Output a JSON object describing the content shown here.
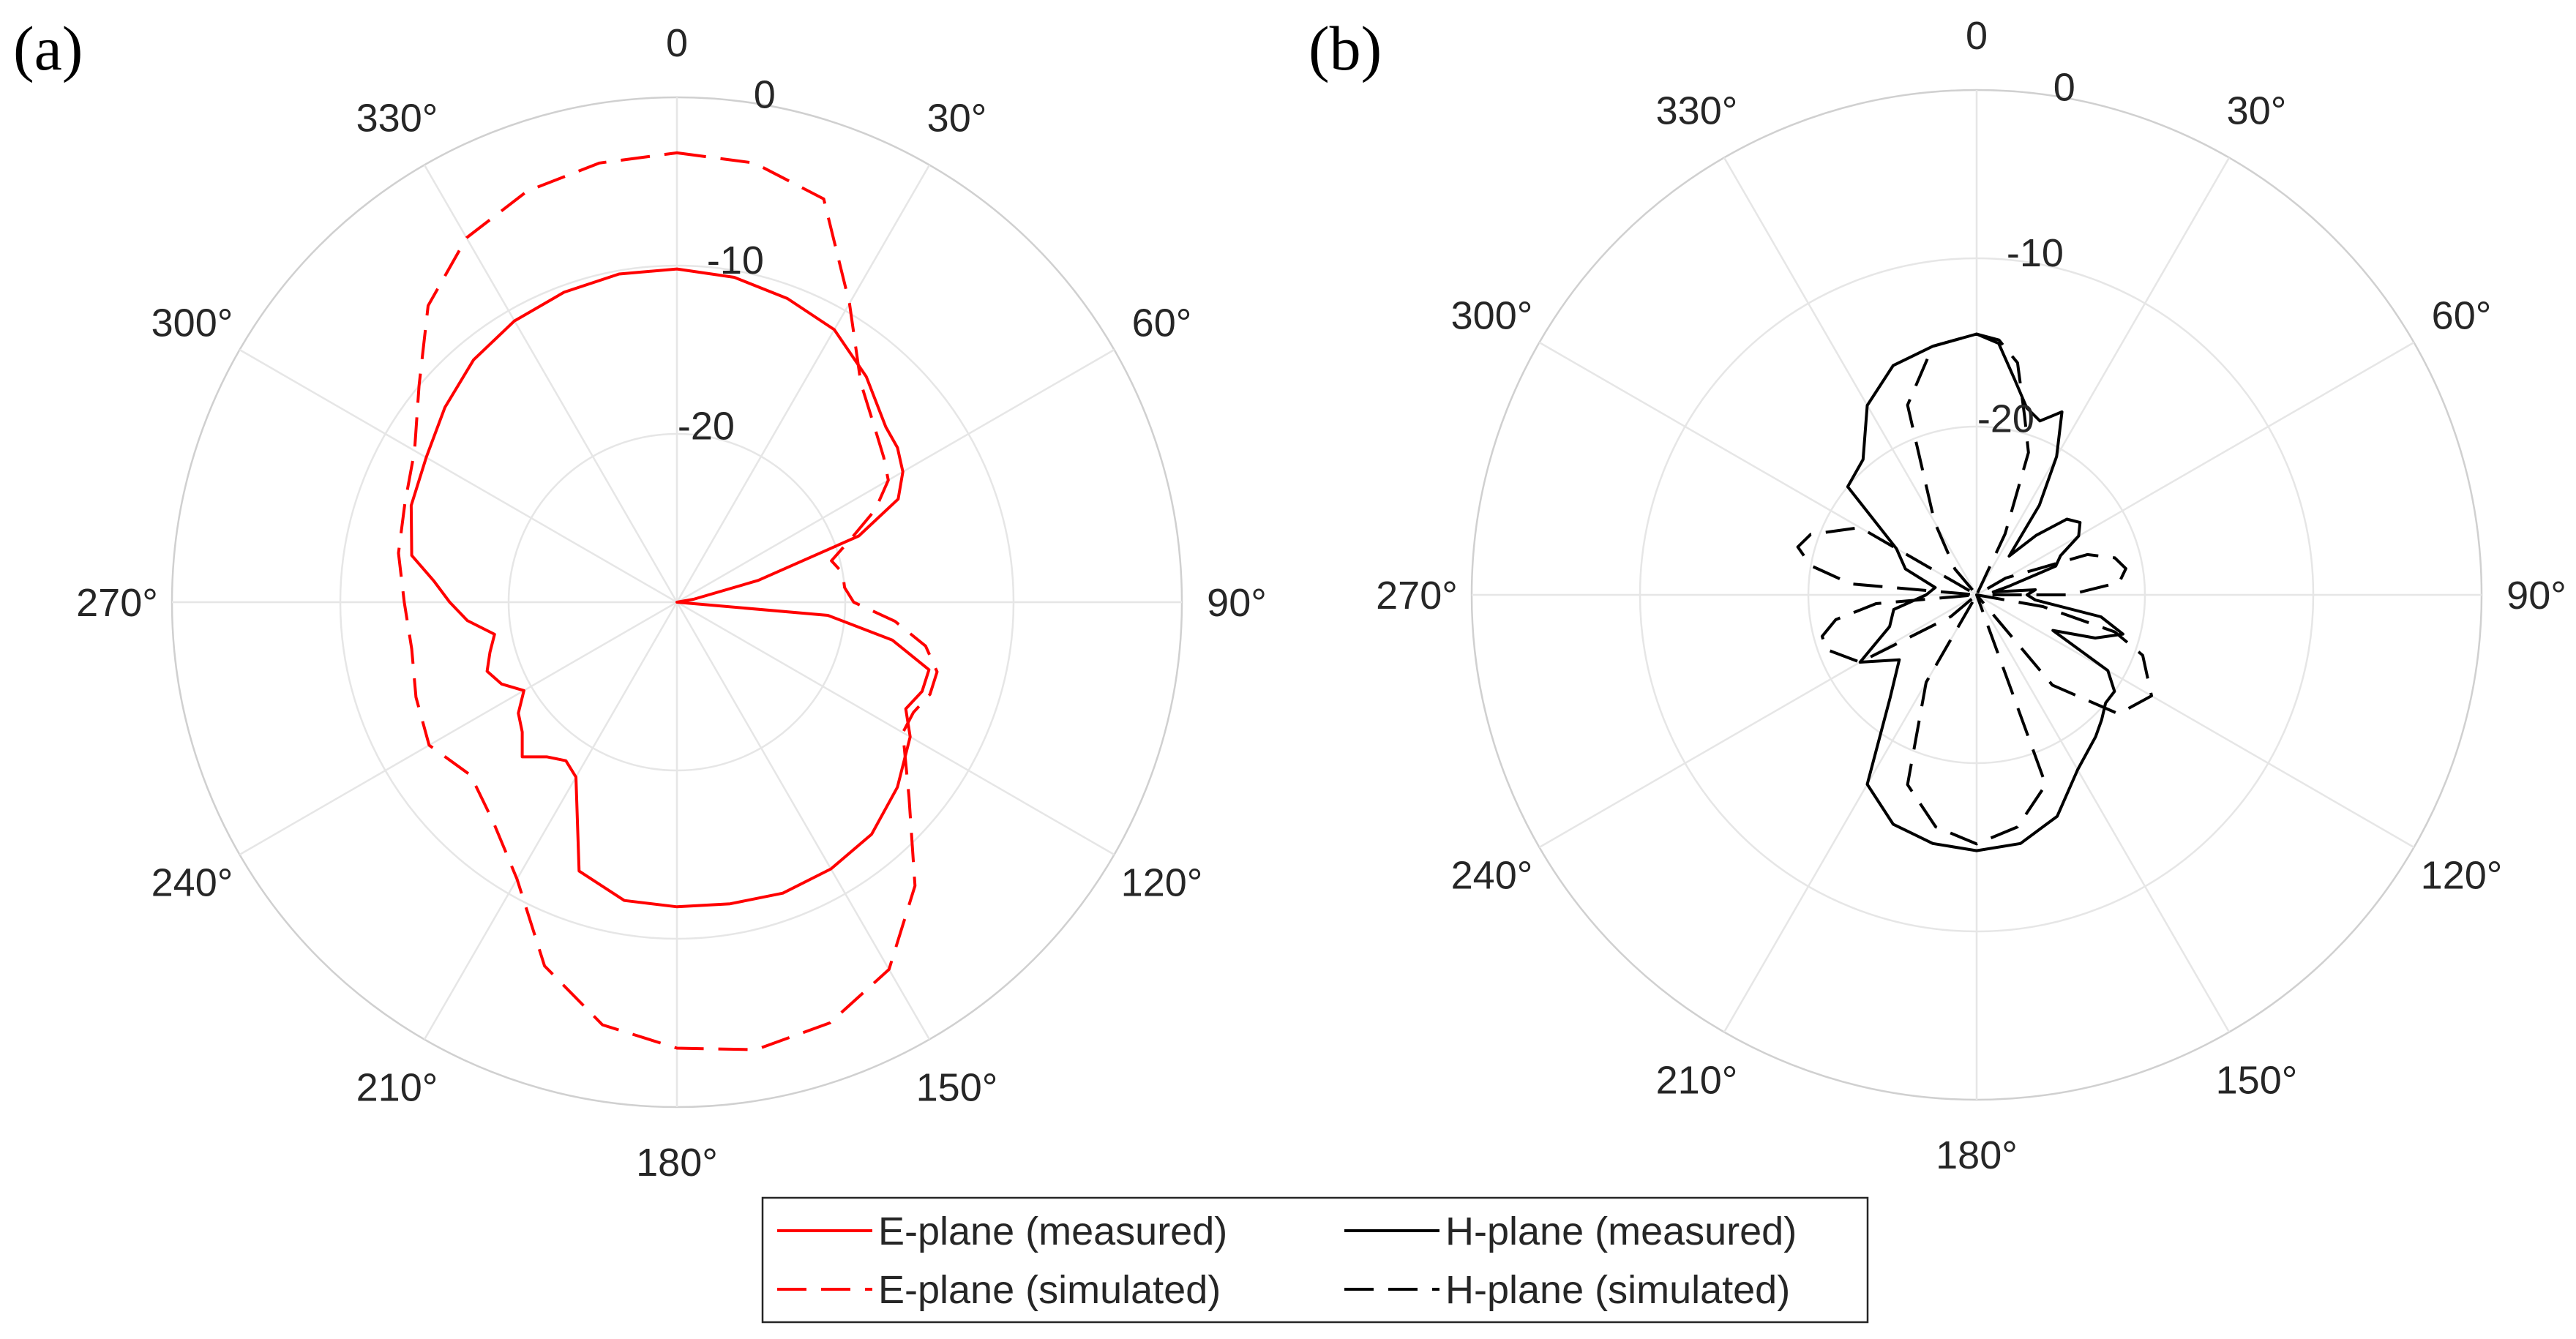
{
  "chart_data": [
    {
      "type": "line",
      "panel_label": "(a)",
      "polar": true,
      "theta_zero": "top",
      "theta_direction": "clockwise",
      "r_unit": "dB",
      "r_lim": [
        -30,
        0
      ],
      "r_ticks": [
        0,
        -10,
        -20
      ],
      "r_tick_labels": [
        "0",
        "-10",
        "-20"
      ],
      "theta_ticks": [
        0,
        30,
        60,
        90,
        120,
        150,
        180,
        210,
        240,
        270,
        300,
        330
      ],
      "theta_tick_labels": [
        "0",
        "30°",
        "60°",
        "90°",
        "120°",
        "150°",
        "180°",
        "210°",
        "240°",
        "270°",
        "300°",
        "330°"
      ],
      "grid": true,
      "series": [
        {
          "name": "E-plane (measured)",
          "color": "#ff0000",
          "dash": "solid",
          "theta": [
            0,
            10,
            20,
            30,
            40,
            50,
            55,
            60,
            65,
            70,
            75,
            80,
            85,
            90,
            95,
            100,
            105,
            110,
            115,
            120,
            130,
            140,
            150,
            160,
            170,
            180,
            190,
            200,
            210,
            215,
            220,
            225,
            230,
            235,
            240,
            245,
            250,
            255,
            260,
            265,
            270,
            275,
            280,
            290,
            300,
            310,
            320,
            330,
            340,
            350
          ],
          "r": [
            -10.2,
            -10.4,
            -10.8,
            -11.3,
            -12.5,
            -13.8,
            -14.0,
            -14.5,
            -15.5,
            -18.5,
            -25.0,
            -29.0,
            -30.0,
            -30.0,
            -21.0,
            -17.0,
            -14.5,
            -14.5,
            -15.0,
            -14.0,
            -12.9,
            -12.0,
            -11.7,
            -11.6,
            -11.8,
            -11.9,
            -12.0,
            -13.0,
            -18.0,
            -18.5,
            -18.0,
            -17.0,
            -18.0,
            -18.5,
            -19.5,
            -18.5,
            -18.0,
            -18.5,
            -19.0,
            -17.5,
            -16.5,
            -15.5,
            -14.0,
            -13.2,
            -12.8,
            -12.0,
            -11.2,
            -10.7,
            -10.4,
            -10.2
          ]
        },
        {
          "name": "E-plane (simulated)",
          "color": "#ff0000",
          "dash": "dashed",
          "theta": [
            0,
            10,
            20,
            30,
            40,
            50,
            55,
            60,
            65,
            70,
            75,
            80,
            85,
            90,
            95,
            100,
            105,
            110,
            115,
            120,
            130,
            140,
            150,
            160,
            170,
            180,
            190,
            200,
            210,
            220,
            230,
            240,
            250,
            260,
            270,
            280,
            290,
            300,
            310,
            320,
            330,
            340,
            350
          ],
          "r": [
            -3.3,
            -3.5,
            -4.5,
            -9.5,
            -13.0,
            -14.5,
            -15.0,
            -15.5,
            -17.0,
            -19.0,
            -20.5,
            -20.0,
            -20.0,
            -19.5,
            -17.0,
            -15.0,
            -14.0,
            -14.0,
            -14.5,
            -14.5,
            -12.0,
            -8.0,
            -4.8,
            -3.4,
            -3.0,
            -3.5,
            -4.5,
            -7.0,
            -11.0,
            -13.0,
            -14.0,
            -13.0,
            -13.5,
            -14.0,
            -13.8,
            -13.2,
            -12.8,
            -12.0,
            -10.0,
            -7.0,
            -5.0,
            -4.0,
            -3.5
          ]
        }
      ]
    },
    {
      "type": "line",
      "panel_label": "(b)",
      "polar": true,
      "theta_zero": "top",
      "theta_direction": "clockwise",
      "r_unit": "dB",
      "r_lim": [
        -30,
        0
      ],
      "r_ticks": [
        0,
        -10,
        -20
      ],
      "r_tick_labels": [
        "0",
        "-10",
        "-20"
      ],
      "theta_ticks": [
        0,
        30,
        60,
        90,
        120,
        150,
        180,
        210,
        240,
        270,
        300,
        330
      ],
      "theta_tick_labels": [
        "0",
        "30°",
        "60°",
        "90°",
        "120°",
        "150°",
        "180°",
        "210°",
        "240°",
        "270°",
        "300°",
        "330°"
      ],
      "grid": true,
      "series": [
        {
          "name": "H-plane (measured)",
          "color": "#000000",
          "dash": "solid",
          "theta": [
            0,
            5,
            10,
            15,
            20,
            25,
            30,
            35,
            40,
            45,
            50,
            55,
            60,
            65,
            70,
            75,
            80,
            85,
            90,
            95,
            100,
            105,
            110,
            115,
            120,
            125,
            130,
            135,
            140,
            150,
            160,
            170,
            180,
            190,
            200,
            210,
            220,
            230,
            240,
            250,
            260,
            270,
            280,
            290,
            300,
            310,
            320,
            330,
            340,
            350
          ],
          "r": [
            -14.5,
            -15.0,
            -17.0,
            -18.5,
            -19.0,
            -18.0,
            -20.5,
            -23.5,
            -27.0,
            -25.0,
            -23.0,
            -22.5,
            -23.0,
            -24.5,
            -25.0,
            -28.0,
            -29.0,
            -26.5,
            -27.0,
            -26.5,
            -22.5,
            -21.0,
            -22.5,
            -25.0,
            -21.0,
            -20.0,
            -20.0,
            -19.5,
            -19.0,
            -18.0,
            -16.0,
            -15.0,
            -14.8,
            -15.0,
            -15.5,
            -17.0,
            -22.0,
            -24.0,
            -22.0,
            -24.5,
            -25.0,
            -27.0,
            -27.5,
            -25.5,
            -24.5,
            -20.0,
            -19.5,
            -17.0,
            -15.5,
            -15.0
          ]
        },
        {
          "name": "H-plane (simulated)",
          "color": "#000000",
          "dash": "dashed",
          "theta": [
            0,
            5,
            10,
            15,
            20,
            25,
            30,
            40,
            50,
            60,
            70,
            75,
            80,
            85,
            90,
            95,
            100,
            105,
            110,
            120,
            130,
            140,
            150,
            160,
            170,
            180,
            190,
            200,
            210,
            220,
            230,
            240,
            250,
            255,
            260,
            265,
            270,
            275,
            280,
            285,
            290,
            300,
            310,
            320,
            330,
            340,
            350
          ],
          "r": [
            -14.5,
            -14.8,
            -16.0,
            -19.0,
            -21.0,
            -26.0,
            -30.0,
            -30.0,
            -30.0,
            -28.0,
            -23.0,
            -21.5,
            -21.0,
            -21.5,
            -24.5,
            -30.0,
            -26.0,
            -21.5,
            -19.5,
            -18.0,
            -19.0,
            -23.0,
            -30.0,
            -18.0,
            -16.0,
            -15.2,
            -16.0,
            -18.0,
            -24.0,
            -30.0,
            -28.0,
            -22.0,
            -20.5,
            -20.5,
            -21.5,
            -24.0,
            -30.0,
            -22.5,
            -20.0,
            -19.0,
            -19.5,
            -22.0,
            -30.0,
            -28.0,
            -25.0,
            -18.0,
            -15.0
          ]
        }
      ]
    }
  ],
  "legend": {
    "entries": [
      {
        "label": "E-plane (measured)",
        "color": "#ff0000",
        "dash": "solid"
      },
      {
        "label": "H-plane (measured)",
        "color": "#000000",
        "dash": "solid"
      },
      {
        "label": "E-plane (simulated)",
        "color": "#ff0000",
        "dash": "dashed"
      },
      {
        "label": "H-plane (simulated)",
        "color": "#000000",
        "dash": "dashed"
      }
    ],
    "placement": "bottom-center"
  }
}
